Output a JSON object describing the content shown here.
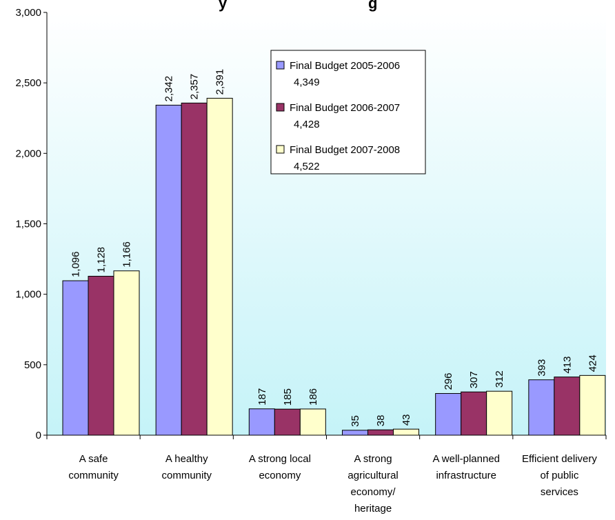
{
  "chart_data": {
    "type": "bar",
    "title_visible_fragments": [
      "y",
      "g"
    ],
    "categories": [
      [
        "A safe",
        "community"
      ],
      [
        "A healthy",
        "community"
      ],
      [
        "A strong local",
        "economy"
      ],
      [
        "A strong",
        "agricultural",
        "economy/",
        "heritage"
      ],
      [
        "A well-planned",
        "infrastructure"
      ],
      [
        "Efficient delivery",
        "of public",
        "services"
      ]
    ],
    "series": [
      {
        "name": "Final Budget 2005-2006",
        "total_label": "4,349",
        "color": "#9999ff",
        "values": [
          1096,
          2342,
          187,
          35,
          296,
          393
        ],
        "labels": [
          "1,096",
          "2,342",
          "187",
          "35",
          "296",
          "393"
        ]
      },
      {
        "name": "Final Budget 2006-2007",
        "total_label": "4,428",
        "color": "#993366",
        "values": [
          1128,
          2357,
          185,
          38,
          307,
          413
        ],
        "labels": [
          "1,128",
          "2,357",
          "185",
          "38",
          "307",
          "413"
        ]
      },
      {
        "name": "Final Budget 2007-2008",
        "total_label": "4,522",
        "color": "#ffffcc",
        "values": [
          1166,
          2391,
          186,
          43,
          312,
          424
        ],
        "labels": [
          "1,166",
          "2,391",
          "186",
          "43",
          "312",
          "424"
        ]
      }
    ],
    "ylim": [
      0,
      3000
    ],
    "yticks": [
      0,
      500,
      1000,
      1500,
      2000,
      2500,
      3000
    ],
    "ytick_labels": [
      "0",
      "500",
      "1,000",
      "1,500",
      "2,000",
      "2,500",
      "3,000"
    ],
    "grid": false,
    "legend_position": "top-center",
    "plot_background": "gradient white-to-light-cyan"
  }
}
